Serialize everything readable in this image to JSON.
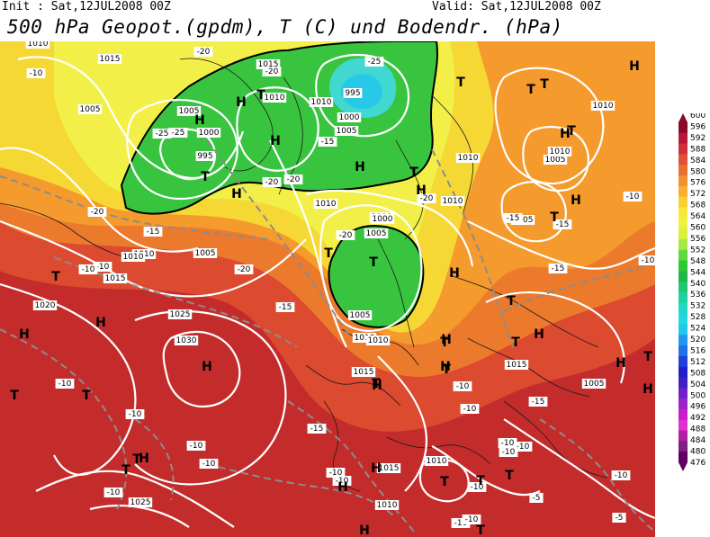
{
  "header": {
    "init": "Init : Sat,12JUL2008 00Z",
    "valid": "Valid: Sat,12JUL2008 00Z",
    "title": "500 hPa Geopot.(gpdm), T (C) und Bodendr. (hPa)"
  },
  "colorbar": {
    "levels": [
      "600",
      "596",
      "592",
      "588",
      "584",
      "580",
      "576",
      "572",
      "568",
      "564",
      "560",
      "556",
      "552",
      "548",
      "544",
      "540",
      "536",
      "532",
      "528",
      "524",
      "520",
      "516",
      "512",
      "508",
      "504",
      "500",
      "496",
      "492",
      "488",
      "484",
      "480",
      "476"
    ],
    "colors": [
      "#8a0a2a",
      "#b8183a",
      "#d0303a",
      "#e0503a",
      "#e8702e",
      "#f09030",
      "#f8b030",
      "#f8d030",
      "#f8e838",
      "#f0f040",
      "#d8f040",
      "#a8e840",
      "#60d840",
      "#30c830",
      "#20b848",
      "#20c870",
      "#20d0a0",
      "#20d8c8",
      "#20d8e0",
      "#20c8f0",
      "#2098f0",
      "#2070e8",
      "#2040d8",
      "#2020c8",
      "#4020c0",
      "#7020c8",
      "#a020c8",
      "#c820c8",
      "#e030d0",
      "#b020a0",
      "#802080",
      "#600060"
    ]
  },
  "map_labels": {
    "isobars": [
      {
        "t": "1015"
      },
      {
        "t": "1015"
      },
      {
        "t": "1010"
      },
      {
        "t": "1005"
      },
      {
        "t": "1000"
      },
      {
        "t": "995"
      },
      {
        "t": "1010"
      },
      {
        "t": "1005"
      },
      {
        "t": "1000"
      },
      {
        "t": "995"
      },
      {
        "t": "1005"
      },
      {
        "t": "1010"
      },
      {
        "t": "1010"
      },
      {
        "t": "1000"
      },
      {
        "t": "1005"
      },
      {
        "t": "1010"
      },
      {
        "t": "1015"
      },
      {
        "t": "1010"
      },
      {
        "t": "1010"
      },
      {
        "t": "1005"
      },
      {
        "t": "1020"
      },
      {
        "t": "1025"
      },
      {
        "t": "1030"
      },
      {
        "t": "1015"
      },
      {
        "t": "1010"
      },
      {
        "t": "1015"
      },
      {
        "t": "1005"
      },
      {
        "t": "1010"
      },
      {
        "t": "1010"
      },
      {
        "t": "1015"
      },
      {
        "t": "1010"
      },
      {
        "t": "1025"
      },
      {
        "t": "1005"
      },
      {
        "t": "1010"
      },
      {
        "t": "1000"
      },
      {
        "t": "1010"
      },
      {
        "t": "1005"
      },
      {
        "t": "1010"
      },
      {
        "t": "1005"
      }
    ],
    "temps": [
      {
        "t": "-10"
      },
      {
        "t": "-20"
      },
      {
        "t": "-20"
      },
      {
        "t": "-25"
      },
      {
        "t": "-20"
      },
      {
        "t": "-25"
      },
      {
        "t": "-15"
      },
      {
        "t": "-25"
      },
      {
        "t": "-20"
      },
      {
        "t": "-20"
      },
      {
        "t": "-15"
      },
      {
        "t": "-10"
      },
      {
        "t": "-10"
      },
      {
        "t": "-20"
      },
      {
        "t": "-20"
      },
      {
        "t": "-15"
      },
      {
        "t": "-10"
      },
      {
        "t": "-10"
      },
      {
        "t": "-15"
      },
      {
        "t": "-10"
      },
      {
        "t": "-15"
      },
      {
        "t": "-20"
      },
      {
        "t": "-10"
      },
      {
        "t": "-15"
      },
      {
        "t": "-15"
      },
      {
        "t": "-10"
      },
      {
        "t": "-10"
      },
      {
        "t": "-10"
      },
      {
        "t": "-10"
      },
      {
        "t": "-15"
      },
      {
        "t": "-10"
      },
      {
        "t": "-10"
      },
      {
        "t": "-10"
      },
      {
        "t": "-10"
      },
      {
        "t": "-10"
      },
      {
        "t": "-10"
      },
      {
        "t": "-10"
      },
      {
        "t": "-10"
      },
      {
        "t": "-10"
      },
      {
        "t": "-5"
      },
      {
        "t": "-5"
      },
      {
        "t": "-10"
      }
    ],
    "centers": [
      {
        "t": "H"
      },
      {
        "t": "T"
      },
      {
        "t": "T"
      },
      {
        "t": "H"
      },
      {
        "t": "H"
      },
      {
        "t": "T"
      },
      {
        "t": "H"
      },
      {
        "t": "T"
      },
      {
        "t": "H"
      },
      {
        "t": "H"
      },
      {
        "t": "T"
      },
      {
        "t": "H"
      },
      {
        "t": "T"
      },
      {
        "t": "T"
      },
      {
        "t": "H"
      },
      {
        "t": "T"
      },
      {
        "t": "T"
      },
      {
        "t": "H"
      },
      {
        "t": "T"
      },
      {
        "t": "H"
      },
      {
        "t": "T"
      },
      {
        "t": "H"
      },
      {
        "t": "T"
      },
      {
        "t": "T"
      },
      {
        "t": "H"
      },
      {
        "t": "T"
      },
      {
        "t": "H"
      },
      {
        "t": "T"
      },
      {
        "t": "H"
      },
      {
        "t": "H"
      },
      {
        "t": "T"
      },
      {
        "t": "H"
      },
      {
        "t": "T"
      },
      {
        "t": "H"
      },
      {
        "t": "T"
      },
      {
        "t": "T"
      },
      {
        "t": "H"
      },
      {
        "t": "T"
      },
      {
        "t": "H"
      },
      {
        "t": "T"
      },
      {
        "t": "H"
      },
      {
        "t": "H"
      },
      {
        "t": "T"
      },
      {
        "t": "T"
      },
      {
        "t": "H"
      },
      {
        "t": "T"
      },
      {
        "t": "H"
      },
      {
        "t": "T"
      }
    ]
  }
}
